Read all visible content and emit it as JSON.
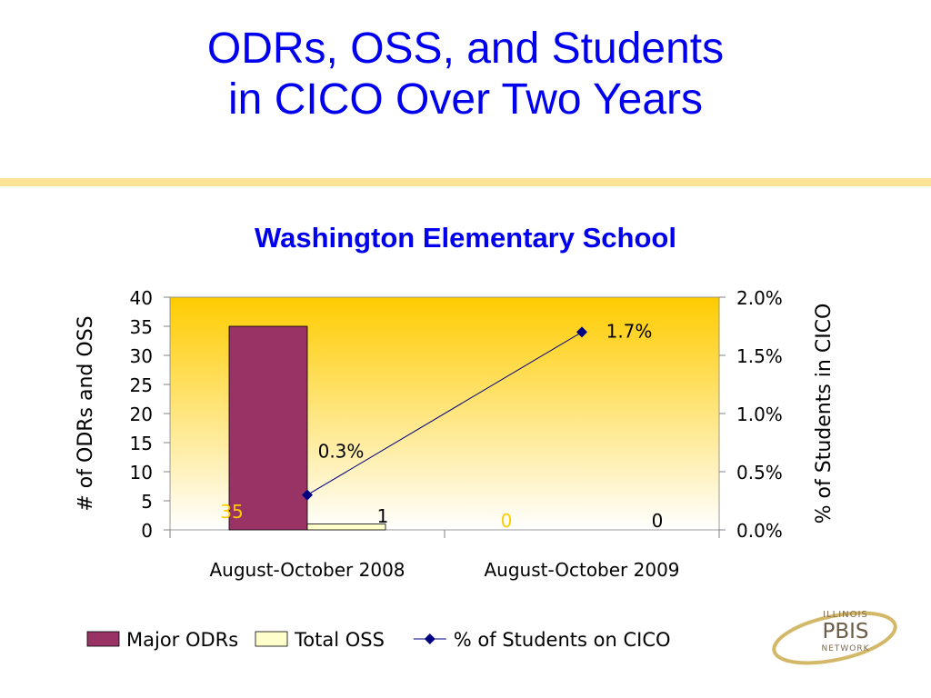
{
  "slide": {
    "title_line1": "ODRs, OSS, and Students",
    "title_line2": "in CICO Over Two Years",
    "accent_color": "#fde396",
    "title_color": "#0000ee"
  },
  "logo": {
    "top_text": "ILLINOIS",
    "main_text": "PBIS",
    "bottom_text": "NETWORK"
  },
  "chart_data": {
    "type": "bar",
    "title": "Washington Elementary School",
    "categories": [
      "August-October 2008",
      "August-October 2009"
    ],
    "series": [
      {
        "name": "Major ODRs",
        "kind": "bar",
        "axis": "left",
        "values": [
          35,
          0
        ],
        "labels": [
          "35",
          "0"
        ],
        "color": "#993366"
      },
      {
        "name": "Total OSS",
        "kind": "bar",
        "axis": "left",
        "values": [
          1,
          0
        ],
        "labels": [
          "1",
          "0"
        ],
        "color": "#ffffcc"
      },
      {
        "name": "% of Students on CICO",
        "kind": "line",
        "axis": "right",
        "values": [
          0.003,
          0.017
        ],
        "labels": [
          "0.3%",
          "1.7%"
        ],
        "color": "#000080"
      }
    ],
    "ylabel": "# of ODRs and OSS",
    "ylim": [
      0,
      40
    ],
    "yticks": [
      "0",
      "5",
      "10",
      "15",
      "20",
      "25",
      "30",
      "35",
      "40"
    ],
    "y2label": "% of Students in CICO",
    "y2lim": [
      0,
      0.02
    ],
    "y2ticks": [
      "0.0%",
      "0.5%",
      "1.0%",
      "1.5%",
      "2.0%"
    ],
    "legend_position": "bottom",
    "background": "gradient gold to white",
    "grid": false
  }
}
